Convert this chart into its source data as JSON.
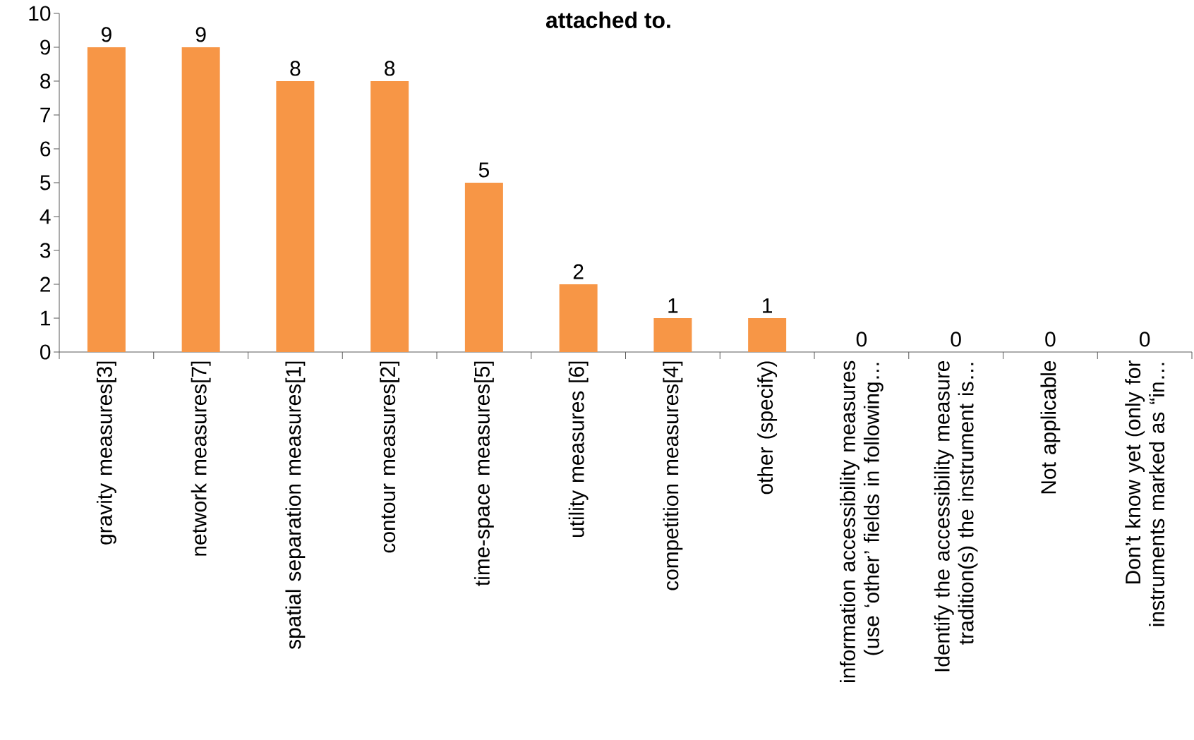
{
  "chart_data": {
    "type": "bar",
    "title": "attached to.",
    "categories": [
      "gravity measures[3]",
      "network measures[7]",
      "spatial separation measures[1]",
      "contour measures[2]",
      "time-space measures[5]",
      "utility measures [6]",
      "competition measures[4]",
      "other (specify)",
      "information accessibility measures (use ‘other’ fields in following…",
      "Identify the accessibility measure tradition(s) the instrument is…",
      "Not applicable",
      "Don’t know yet (only for instruments marked as “in…"
    ],
    "values": [
      9,
      9,
      8,
      8,
      5,
      2,
      1,
      1,
      0,
      0,
      0,
      0
    ],
    "color": "#f79646",
    "ylim": [
      0,
      10
    ],
    "yticks": [
      0,
      1,
      2,
      3,
      4,
      5,
      6,
      7,
      8,
      9,
      10
    ],
    "data_labels": true,
    "grid": false
  }
}
